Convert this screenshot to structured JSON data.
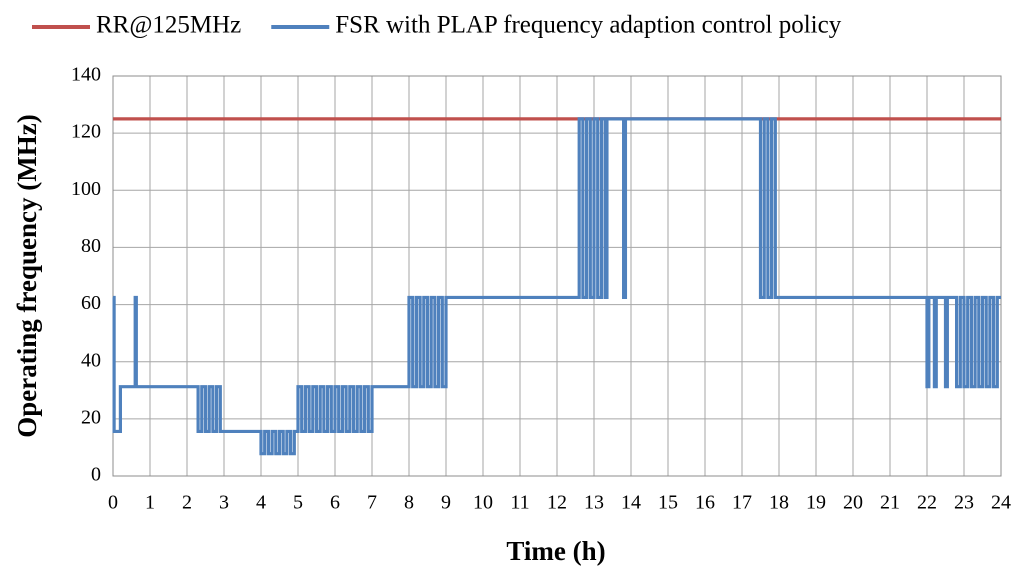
{
  "chart_data": {
    "type": "line",
    "xlabel": "Time (h)",
    "ylabel": "Operating frequency (MHz)",
    "xlim": [
      0,
      24
    ],
    "xticks": [
      0,
      1,
      2,
      3,
      4,
      5,
      6,
      7,
      8,
      9,
      10,
      11,
      12,
      13,
      14,
      15,
      16,
      17,
      18,
      19,
      20,
      21,
      22,
      23,
      24
    ],
    "ylim": [
      0,
      140
    ],
    "yticks": [
      0,
      20,
      40,
      60,
      80,
      100,
      120,
      140
    ],
    "grid": true,
    "legend": "top",
    "series": [
      {
        "name": "RR@125MHz",
        "color": "#c0504d",
        "x": [
          0,
          24
        ],
        "values": [
          125,
          125
        ]
      },
      {
        "name": "FSR with PLAP frequency adaption control policy",
        "color": "#4f81bd",
        "x": [
          0,
          0.03,
          0.03,
          0.2,
          0.2,
          0.6,
          0.6,
          0.63,
          0.63,
          2.3,
          2.3,
          2.4,
          2.4,
          2.5,
          2.5,
          2.6,
          2.6,
          2.7,
          2.7,
          2.8,
          2.8,
          2.9,
          2.9,
          4.0,
          4.0,
          4.1,
          4.1,
          4.2,
          4.2,
          4.3,
          4.3,
          4.4,
          4.4,
          4.5,
          4.5,
          4.6,
          4.6,
          4.7,
          4.7,
          4.8,
          4.8,
          4.9,
          4.9,
          5.0,
          5.0,
          5.1,
          5.1,
          5.2,
          5.2,
          5.3,
          5.3,
          5.4,
          5.4,
          5.5,
          5.5,
          5.6,
          5.6,
          5.7,
          5.7,
          5.8,
          5.8,
          5.9,
          5.9,
          6.0,
          6.0,
          6.1,
          6.1,
          6.2,
          6.2,
          6.3,
          6.3,
          6.4,
          6.4,
          6.5,
          6.5,
          6.6,
          6.6,
          6.7,
          6.7,
          6.8,
          6.8,
          6.9,
          6.9,
          7.0,
          7.0,
          8.0,
          8.0,
          8.1,
          8.1,
          8.2,
          8.2,
          8.3,
          8.3,
          8.4,
          8.4,
          8.5,
          8.5,
          8.6,
          8.6,
          8.7,
          8.7,
          8.8,
          8.8,
          8.9,
          8.9,
          9.0,
          9.0,
          12.6,
          12.6,
          12.7,
          12.7,
          12.8,
          12.8,
          12.9,
          12.9,
          13.0,
          13.0,
          13.1,
          13.1,
          13.2,
          13.2,
          13.3,
          13.3,
          13.35,
          13.35,
          13.8,
          13.8,
          13.85,
          13.85,
          17.5,
          17.5,
          17.6,
          17.6,
          17.7,
          17.7,
          17.8,
          17.8,
          17.9,
          17.9,
          22.0,
          22.0,
          22.05,
          22.05,
          22.2,
          22.2,
          22.25,
          22.25,
          22.5,
          22.5,
          22.55,
          22.55,
          22.8,
          22.8,
          22.9,
          22.9,
          23.0,
          23.0,
          23.1,
          23.1,
          23.2,
          23.2,
          23.3,
          23.3,
          23.4,
          23.4,
          23.5,
          23.5,
          23.6,
          23.6,
          23.7,
          23.7,
          23.8,
          23.8,
          23.9,
          23.9,
          24.0
        ],
        "values": [
          62.5,
          62.5,
          15.6,
          15.6,
          31.25,
          31.25,
          62.5,
          62.5,
          31.25,
          31.25,
          15.6,
          15.6,
          31.25,
          31.25,
          15.6,
          15.6,
          31.25,
          31.25,
          15.6,
          15.6,
          31.25,
          31.25,
          15.6,
          15.6,
          7.8,
          7.8,
          15.6,
          15.6,
          7.8,
          7.8,
          15.6,
          15.6,
          7.8,
          7.8,
          15.6,
          15.6,
          7.8,
          7.8,
          15.6,
          15.6,
          7.8,
          7.8,
          15.6,
          15.6,
          31.25,
          31.25,
          15.6,
          15.6,
          31.25,
          31.25,
          15.6,
          15.6,
          31.25,
          31.25,
          15.6,
          15.6,
          31.25,
          31.25,
          15.6,
          15.6,
          31.25,
          31.25,
          15.6,
          15.6,
          31.25,
          31.25,
          15.6,
          15.6,
          31.25,
          31.25,
          15.6,
          15.6,
          31.25,
          31.25,
          15.6,
          15.6,
          31.25,
          31.25,
          15.6,
          15.6,
          31.25,
          31.25,
          15.6,
          15.6,
          31.25,
          31.25,
          62.5,
          62.5,
          31.25,
          31.25,
          62.5,
          62.5,
          31.25,
          31.25,
          62.5,
          62.5,
          31.25,
          31.25,
          62.5,
          62.5,
          31.25,
          31.25,
          62.5,
          62.5,
          31.25,
          31.25,
          62.5,
          62.5,
          125,
          125,
          62.5,
          62.5,
          125,
          125,
          62.5,
          62.5,
          125,
          125,
          62.5,
          62.5,
          125,
          125,
          62.5,
          62.5,
          125,
          125,
          62.5,
          62.5,
          125,
          125,
          62.5,
          62.5,
          125,
          125,
          62.5,
          62.5,
          125,
          125,
          62.5,
          62.5,
          31.25,
          31.25,
          62.5,
          62.5,
          31.25,
          31.25,
          62.5,
          62.5,
          31.25,
          31.25,
          62.5,
          62.5,
          31.25,
          31.25,
          62.5,
          62.5,
          31.25,
          31.25,
          62.5,
          62.5,
          31.25,
          31.25,
          62.5,
          62.5,
          31.25,
          31.25,
          62.5,
          62.5,
          31.25,
          31.25,
          62.5,
          62.5,
          31.25,
          31.25,
          62.5,
          62.5
        ]
      }
    ]
  }
}
